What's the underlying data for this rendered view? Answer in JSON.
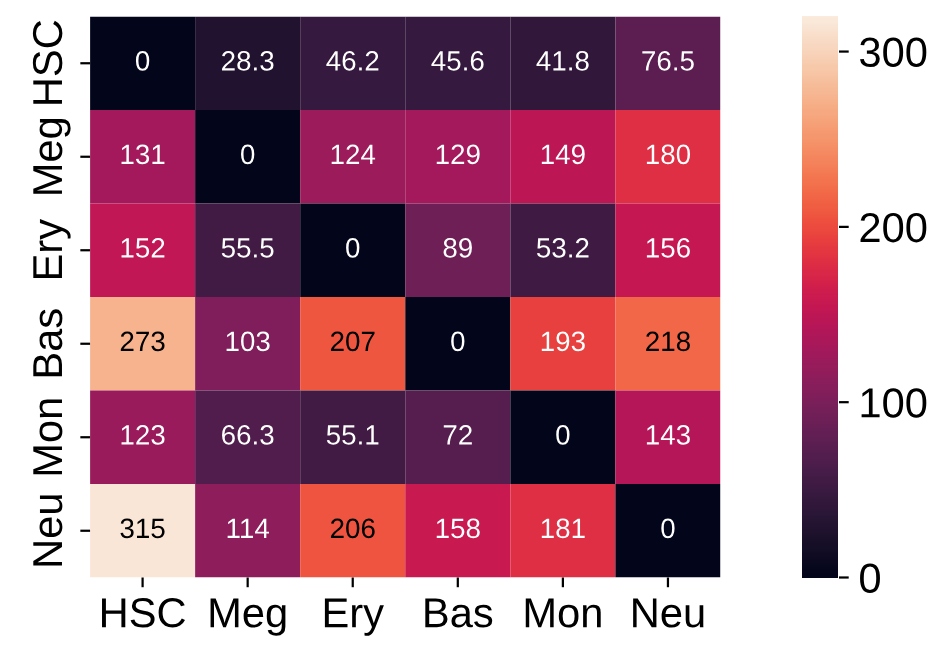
{
  "chart_data": {
    "type": "heatmap",
    "categories": [
      "HSC",
      "Meg",
      "Ery",
      "Bas",
      "Mon",
      "Neu"
    ],
    "y_categories": [
      "HSC",
      "Meg",
      "Ery",
      "Bas",
      "Mon",
      "Neu"
    ],
    "cells": [
      [
        0,
        28.3,
        46.2,
        45.6,
        41.8,
        76.5
      ],
      [
        131,
        0,
        124,
        129,
        149,
        180
      ],
      [
        152,
        55.5,
        0,
        89,
        53.2,
        156
      ],
      [
        273,
        103,
        207,
        0,
        193,
        218
      ],
      [
        123,
        66.3,
        55.1,
        72,
        0,
        143
      ],
      [
        315,
        114,
        206,
        158,
        181,
        0
      ]
    ],
    "data_labels": true,
    "clim": [
      0,
      320
    ],
    "cticks": [
      0,
      100,
      200,
      300
    ]
  }
}
